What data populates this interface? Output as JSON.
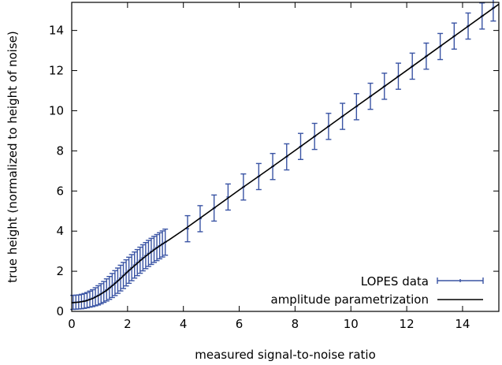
{
  "chart_data": {
    "type": "scatter",
    "xlabel": "measured signal-to-noise ratio",
    "ylabel": "true height (normalized to height of noise)",
    "xlim": [
      0,
      15.3
    ],
    "ylim": [
      0,
      15.4
    ],
    "xticks": [
      0,
      2,
      4,
      6,
      8,
      10,
      12,
      14
    ],
    "yticks": [
      0,
      2,
      4,
      6,
      8,
      10,
      12,
      14
    ],
    "grid": false,
    "legend_position": "bottom-right",
    "colors": {
      "data": "#3a54a4",
      "fit": "#000000"
    },
    "series": [
      {
        "name": "LOPES data",
        "style": "points-with-errorbars",
        "points": [
          {
            "x": 0.05,
            "y": 0.45,
            "err": 0.35
          },
          {
            "x": 0.15,
            "y": 0.46,
            "err": 0.35
          },
          {
            "x": 0.25,
            "y": 0.47,
            "err": 0.35
          },
          {
            "x": 0.35,
            "y": 0.49,
            "err": 0.36
          },
          {
            "x": 0.45,
            "y": 0.52,
            "err": 0.37
          },
          {
            "x": 0.55,
            "y": 0.56,
            "err": 0.38
          },
          {
            "x": 0.65,
            "y": 0.61,
            "err": 0.4
          },
          {
            "x": 0.75,
            "y": 0.66,
            "err": 0.42
          },
          {
            "x": 0.85,
            "y": 0.73,
            "err": 0.45
          },
          {
            "x": 0.95,
            "y": 0.8,
            "err": 0.48
          },
          {
            "x": 1.05,
            "y": 0.88,
            "err": 0.5
          },
          {
            "x": 1.15,
            "y": 0.97,
            "err": 0.52
          },
          {
            "x": 1.25,
            "y": 1.07,
            "err": 0.55
          },
          {
            "x": 1.35,
            "y": 1.17,
            "err": 0.57
          },
          {
            "x": 1.45,
            "y": 1.29,
            "err": 0.6
          },
          {
            "x": 1.55,
            "y": 1.41,
            "err": 0.62
          },
          {
            "x": 1.65,
            "y": 1.53,
            "err": 0.63
          },
          {
            "x": 1.75,
            "y": 1.66,
            "err": 0.64
          },
          {
            "x": 1.85,
            "y": 1.79,
            "err": 0.65
          },
          {
            "x": 1.95,
            "y": 1.92,
            "err": 0.65
          },
          {
            "x": 2.05,
            "y": 2.05,
            "err": 0.65
          },
          {
            "x": 2.15,
            "y": 2.18,
            "err": 0.65
          },
          {
            "x": 2.25,
            "y": 2.31,
            "err": 0.65
          },
          {
            "x": 2.35,
            "y": 2.43,
            "err": 0.65
          },
          {
            "x": 2.45,
            "y": 2.55,
            "err": 0.65
          },
          {
            "x": 2.55,
            "y": 2.67,
            "err": 0.65
          },
          {
            "x": 2.65,
            "y": 2.78,
            "err": 0.65
          },
          {
            "x": 2.75,
            "y": 2.89,
            "err": 0.65
          },
          {
            "x": 2.85,
            "y": 2.99,
            "err": 0.65
          },
          {
            "x": 2.95,
            "y": 3.09,
            "err": 0.65
          },
          {
            "x": 3.05,
            "y": 3.18,
            "err": 0.65
          },
          {
            "x": 3.15,
            "y": 3.27,
            "err": 0.65
          },
          {
            "x": 3.25,
            "y": 3.36,
            "err": 0.65
          },
          {
            "x": 3.35,
            "y": 3.45,
            "err": 0.65
          },
          {
            "x": 4.15,
            "y": 4.12,
            "err": 0.65
          },
          {
            "x": 4.6,
            "y": 4.62,
            "err": 0.65
          },
          {
            "x": 5.1,
            "y": 5.15,
            "err": 0.65
          },
          {
            "x": 5.6,
            "y": 5.7,
            "err": 0.65
          },
          {
            "x": 6.15,
            "y": 6.2,
            "err": 0.65
          },
          {
            "x": 6.7,
            "y": 6.72,
            "err": 0.65
          },
          {
            "x": 7.2,
            "y": 7.22,
            "err": 0.65
          },
          {
            "x": 7.7,
            "y": 7.7,
            "err": 0.65
          },
          {
            "x": 8.2,
            "y": 8.22,
            "err": 0.65
          },
          {
            "x": 8.7,
            "y": 8.72,
            "err": 0.65
          },
          {
            "x": 9.2,
            "y": 9.22,
            "err": 0.65
          },
          {
            "x": 9.7,
            "y": 9.72,
            "err": 0.65
          },
          {
            "x": 10.2,
            "y": 10.2,
            "err": 0.65
          },
          {
            "x": 10.7,
            "y": 10.72,
            "err": 0.65
          },
          {
            "x": 11.2,
            "y": 11.22,
            "err": 0.65
          },
          {
            "x": 11.7,
            "y": 11.72,
            "err": 0.65
          },
          {
            "x": 12.2,
            "y": 12.22,
            "err": 0.65
          },
          {
            "x": 12.7,
            "y": 12.72,
            "err": 0.65
          },
          {
            "x": 13.2,
            "y": 13.2,
            "err": 0.65
          },
          {
            "x": 13.7,
            "y": 13.72,
            "err": 0.65
          },
          {
            "x": 14.2,
            "y": 14.22,
            "err": 0.65
          },
          {
            "x": 14.7,
            "y": 14.72,
            "err": 0.65
          },
          {
            "x": 15.1,
            "y": 15.12,
            "err": 0.65
          }
        ]
      },
      {
        "name": "amplitude parametrization",
        "style": "line",
        "points": [
          {
            "x": 0.0,
            "y": 0.43
          },
          {
            "x": 0.25,
            "y": 0.46
          },
          {
            "x": 0.5,
            "y": 0.52
          },
          {
            "x": 0.75,
            "y": 0.64
          },
          {
            "x": 1.0,
            "y": 0.82
          },
          {
            "x": 1.25,
            "y": 1.05
          },
          {
            "x": 1.5,
            "y": 1.33
          },
          {
            "x": 1.75,
            "y": 1.64
          },
          {
            "x": 2.0,
            "y": 1.97
          },
          {
            "x": 2.25,
            "y": 2.28
          },
          {
            "x": 2.5,
            "y": 2.58
          },
          {
            "x": 2.75,
            "y": 2.86
          },
          {
            "x": 3.0,
            "y": 3.12
          },
          {
            "x": 3.25,
            "y": 3.36
          },
          {
            "x": 3.5,
            "y": 3.58
          },
          {
            "x": 4.0,
            "y": 4.05
          },
          {
            "x": 5.0,
            "y": 5.05
          },
          {
            "x": 6.0,
            "y": 6.05
          },
          {
            "x": 7.0,
            "y": 7.03
          },
          {
            "x": 8.0,
            "y": 8.02
          },
          {
            "x": 9.0,
            "y": 9.02
          },
          {
            "x": 10.0,
            "y": 10.02
          },
          {
            "x": 11.0,
            "y": 11.01
          },
          {
            "x": 12.0,
            "y": 12.01
          },
          {
            "x": 13.0,
            "y": 13.01
          },
          {
            "x": 14.0,
            "y": 14.01
          },
          {
            "x": 15.3,
            "y": 15.31
          }
        ]
      }
    ]
  }
}
